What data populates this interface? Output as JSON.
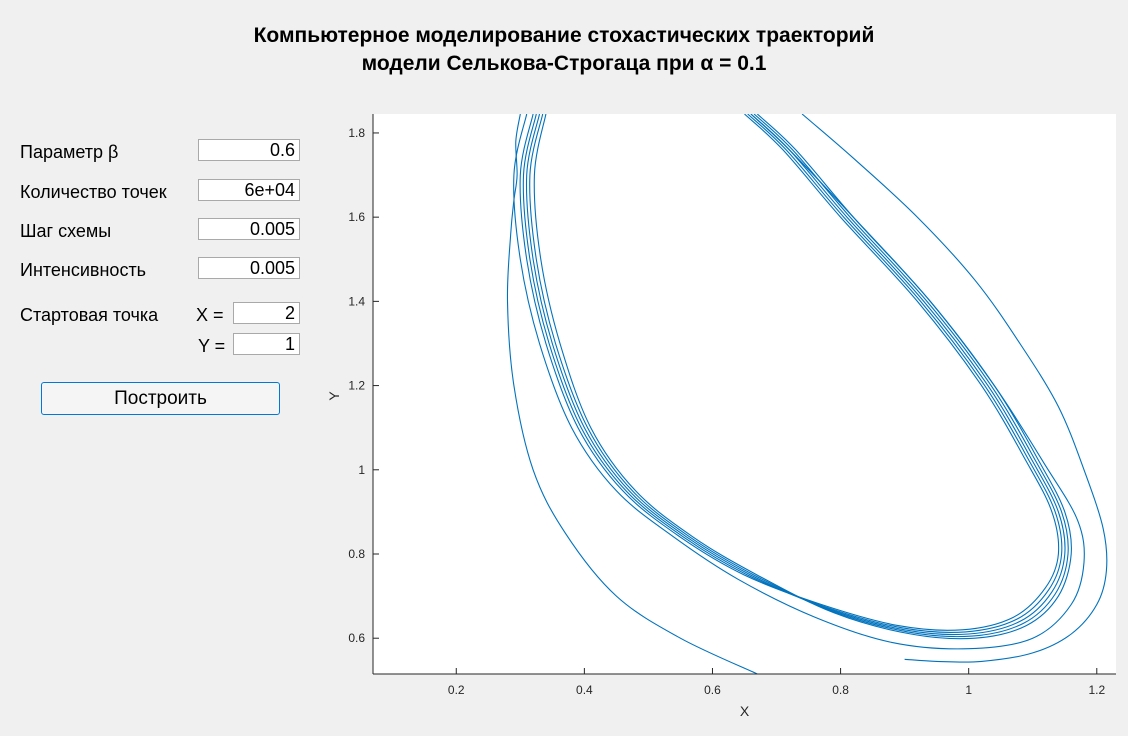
{
  "title": {
    "line1": "Компьютерное моделирование стохастических траекторий",
    "line2": "модели Селькова-Строгаца при α = 0.1"
  },
  "params": {
    "beta_label": "Параметр β",
    "beta_value": "0.6",
    "count_label": "Количество точек",
    "count_value": "6e+04",
    "step_label": "Шаг схемы",
    "step_value": "0.005",
    "intensity_label": "Интенсивность",
    "intensity_value": "0.005",
    "start_label": "Стартовая точка",
    "x_label": "X =",
    "x_value": "2",
    "y_label": "Y =",
    "y_value": "1"
  },
  "build_button": {
    "label": "Построить"
  },
  "colors": {
    "line": "#0072bd",
    "axis": "#262626",
    "panel": "#f0f0f0"
  },
  "chart_data": {
    "type": "line",
    "title": "",
    "xlabel": "X",
    "ylabel": "Y",
    "xlim": [
      0.07,
      1.23
    ],
    "ylim": [
      0.515,
      1.845
    ],
    "xticks": [
      0.2,
      0.4,
      0.6,
      0.8,
      1.0,
      1.2
    ],
    "xtick_labels": [
      "0.2",
      "0.4",
      "0.6",
      "0.8",
      "1",
      "1.2"
    ],
    "yticks": [
      0.6,
      0.8,
      1.0,
      1.2,
      1.4,
      1.6,
      1.8
    ],
    "ytick_labels": [
      "0.6",
      "0.8",
      "1",
      "1.2",
      "1.4",
      "1.6",
      "1.8"
    ],
    "grid": false,
    "legend": "none",
    "series": [
      {
        "x": [
          0.67,
          0.55,
          0.45,
          0.37,
          0.32,
          0.29,
          0.28,
          0.285,
          0.29,
          0.295,
          0.293,
          0.3
        ],
        "y": [
          0.515,
          0.6,
          0.7,
          0.85,
          1.0,
          1.2,
          1.4,
          1.56,
          1.64,
          1.7,
          1.78,
          1.845
        ]
      },
      {
        "x": [
          0.33,
          0.31,
          0.32,
          0.35,
          0.4,
          0.47,
          0.56,
          0.66,
          0.78,
          0.9,
          1.0,
          1.08,
          1.13,
          1.15,
          1.14,
          1.1,
          1.03,
          0.93,
          0.81,
          0.72,
          0.66
        ],
        "y": [
          1.845,
          1.7,
          1.5,
          1.3,
          1.1,
          0.95,
          0.84,
          0.75,
          0.67,
          0.62,
          0.61,
          0.64,
          0.71,
          0.8,
          0.9,
          1.02,
          1.2,
          1.4,
          1.6,
          1.76,
          1.845
        ]
      },
      {
        "x": [
          0.335,
          0.315,
          0.325,
          0.355,
          0.405,
          0.475,
          0.565,
          0.665,
          0.785,
          0.905,
          1.005,
          1.085,
          1.135,
          1.155,
          1.145,
          1.105,
          1.035,
          0.935,
          0.815,
          0.725,
          0.665
        ],
        "y": [
          1.845,
          1.7,
          1.5,
          1.3,
          1.1,
          0.95,
          0.84,
          0.75,
          0.665,
          0.615,
          0.605,
          0.635,
          0.705,
          0.8,
          0.9,
          1.02,
          1.2,
          1.4,
          1.6,
          1.76,
          1.845
        ]
      },
      {
        "x": [
          0.325,
          0.305,
          0.315,
          0.345,
          0.395,
          0.465,
          0.555,
          0.655,
          0.775,
          0.895,
          0.995,
          1.075,
          1.125,
          1.145,
          1.135,
          1.095,
          1.025,
          0.925,
          0.805,
          0.715,
          0.655
        ],
        "y": [
          1.845,
          1.7,
          1.5,
          1.3,
          1.1,
          0.95,
          0.84,
          0.75,
          0.675,
          0.625,
          0.615,
          0.645,
          0.715,
          0.8,
          0.9,
          1.02,
          1.2,
          1.4,
          1.6,
          1.76,
          1.845
        ]
      },
      {
        "x": [
          0.34,
          0.322,
          0.332,
          0.362,
          0.41,
          0.48,
          0.57,
          0.67,
          0.79,
          0.91,
          1.01,
          1.09,
          1.14,
          1.16,
          1.15,
          1.11,
          1.04,
          0.94,
          0.82,
          0.73,
          0.67
        ],
        "y": [
          1.845,
          1.7,
          1.5,
          1.3,
          1.1,
          0.95,
          0.84,
          0.75,
          0.66,
          0.61,
          0.6,
          0.63,
          0.7,
          0.8,
          0.9,
          1.02,
          1.2,
          1.4,
          1.6,
          1.76,
          1.845
        ]
      },
      {
        "x": [
          0.32,
          0.3,
          0.31,
          0.34,
          0.39,
          0.46,
          0.55,
          0.65,
          0.77,
          0.89,
          0.99,
          1.07,
          1.12,
          1.14,
          1.13,
          1.09,
          1.02,
          0.92,
          0.8,
          0.71,
          0.65
        ],
        "y": [
          1.845,
          1.7,
          1.5,
          1.3,
          1.1,
          0.95,
          0.84,
          0.75,
          0.68,
          0.63,
          0.62,
          0.65,
          0.72,
          0.8,
          0.9,
          1.02,
          1.2,
          1.4,
          1.6,
          1.76,
          1.845
        ]
      },
      {
        "x": [
          0.31,
          0.29,
          0.3,
          0.33,
          0.38,
          0.45,
          0.54,
          0.64,
          0.76,
          0.88,
          1.0,
          1.1,
          1.16,
          1.18,
          1.17,
          1.12,
          1.04,
          0.94,
          0.82,
          0.72,
          0.66
        ],
        "y": [
          1.845,
          1.7,
          1.5,
          1.3,
          1.1,
          0.95,
          0.84,
          0.74,
          0.65,
          0.59,
          0.575,
          0.6,
          0.68,
          0.78,
          0.88,
          1.01,
          1.2,
          1.4,
          1.6,
          1.76,
          1.845
        ]
      },
      {
        "x": [
          0.74,
          0.82,
          0.92,
          1.01,
          1.08,
          1.14,
          1.18,
          1.21,
          1.215,
          1.2,
          1.16,
          1.1,
          1.02,
          0.95,
          0.9
        ],
        "y": [
          1.845,
          1.74,
          1.6,
          1.45,
          1.3,
          1.15,
          1.0,
          0.86,
          0.76,
          0.68,
          0.61,
          0.565,
          0.545,
          0.545,
          0.55
        ]
      }
    ]
  }
}
